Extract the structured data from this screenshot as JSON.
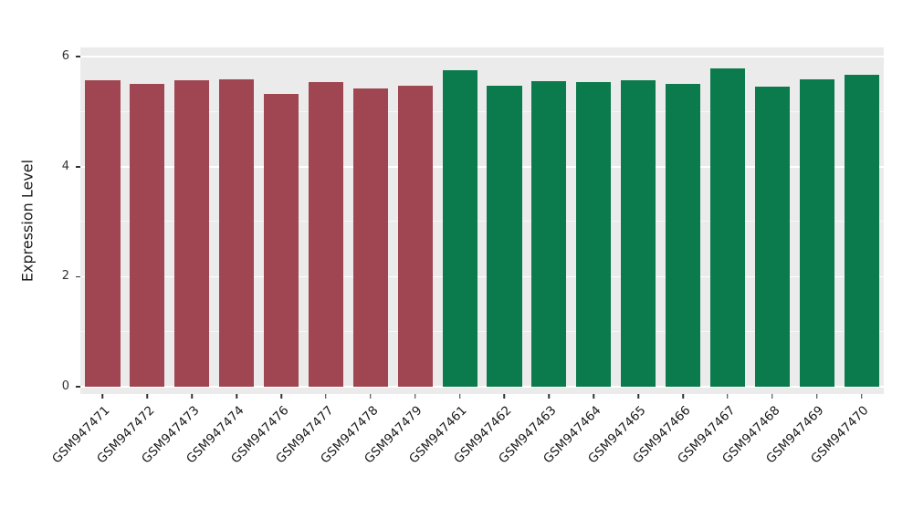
{
  "chart_data": {
    "type": "bar",
    "title": "",
    "xlabel": "",
    "ylabel": "Expression Level",
    "ylim": [
      0,
      6.3
    ],
    "yticks_major": [
      0,
      2,
      4,
      6
    ],
    "yticks_minor": [
      1,
      3,
      5
    ],
    "legend": "none",
    "panel_background": "#EBEBEB",
    "grid_color": "#FFFFFF",
    "group_colors": {
      "red": "#A04552",
      "green": "#0B7A4D"
    },
    "bars": [
      {
        "label": "GSM947471",
        "value": 5.57,
        "group": "red"
      },
      {
        "label": "GSM947472",
        "value": 5.51,
        "group": "red"
      },
      {
        "label": "GSM947473",
        "value": 5.57,
        "group": "red"
      },
      {
        "label": "GSM947474",
        "value": 5.59,
        "group": "red"
      },
      {
        "label": "GSM947476",
        "value": 5.33,
        "group": "red"
      },
      {
        "label": "GSM947477",
        "value": 5.54,
        "group": "red"
      },
      {
        "label": "GSM947478",
        "value": 5.42,
        "group": "red"
      },
      {
        "label": "GSM947479",
        "value": 5.48,
        "group": "red"
      },
      {
        "label": "GSM947461",
        "value": 5.75,
        "group": "green"
      },
      {
        "label": "GSM947462",
        "value": 5.48,
        "group": "green"
      },
      {
        "label": "GSM947463",
        "value": 5.55,
        "group": "green"
      },
      {
        "label": "GSM947464",
        "value": 5.54,
        "group": "green"
      },
      {
        "label": "GSM947465",
        "value": 5.57,
        "group": "green"
      },
      {
        "label": "GSM947466",
        "value": 5.51,
        "group": "green"
      },
      {
        "label": "GSM947467",
        "value": 5.78,
        "group": "green"
      },
      {
        "label": "GSM947468",
        "value": 5.46,
        "group": "green"
      },
      {
        "label": "GSM947469",
        "value": 5.59,
        "group": "green"
      },
      {
        "label": "GSM947470",
        "value": 5.67,
        "group": "green"
      }
    ]
  }
}
